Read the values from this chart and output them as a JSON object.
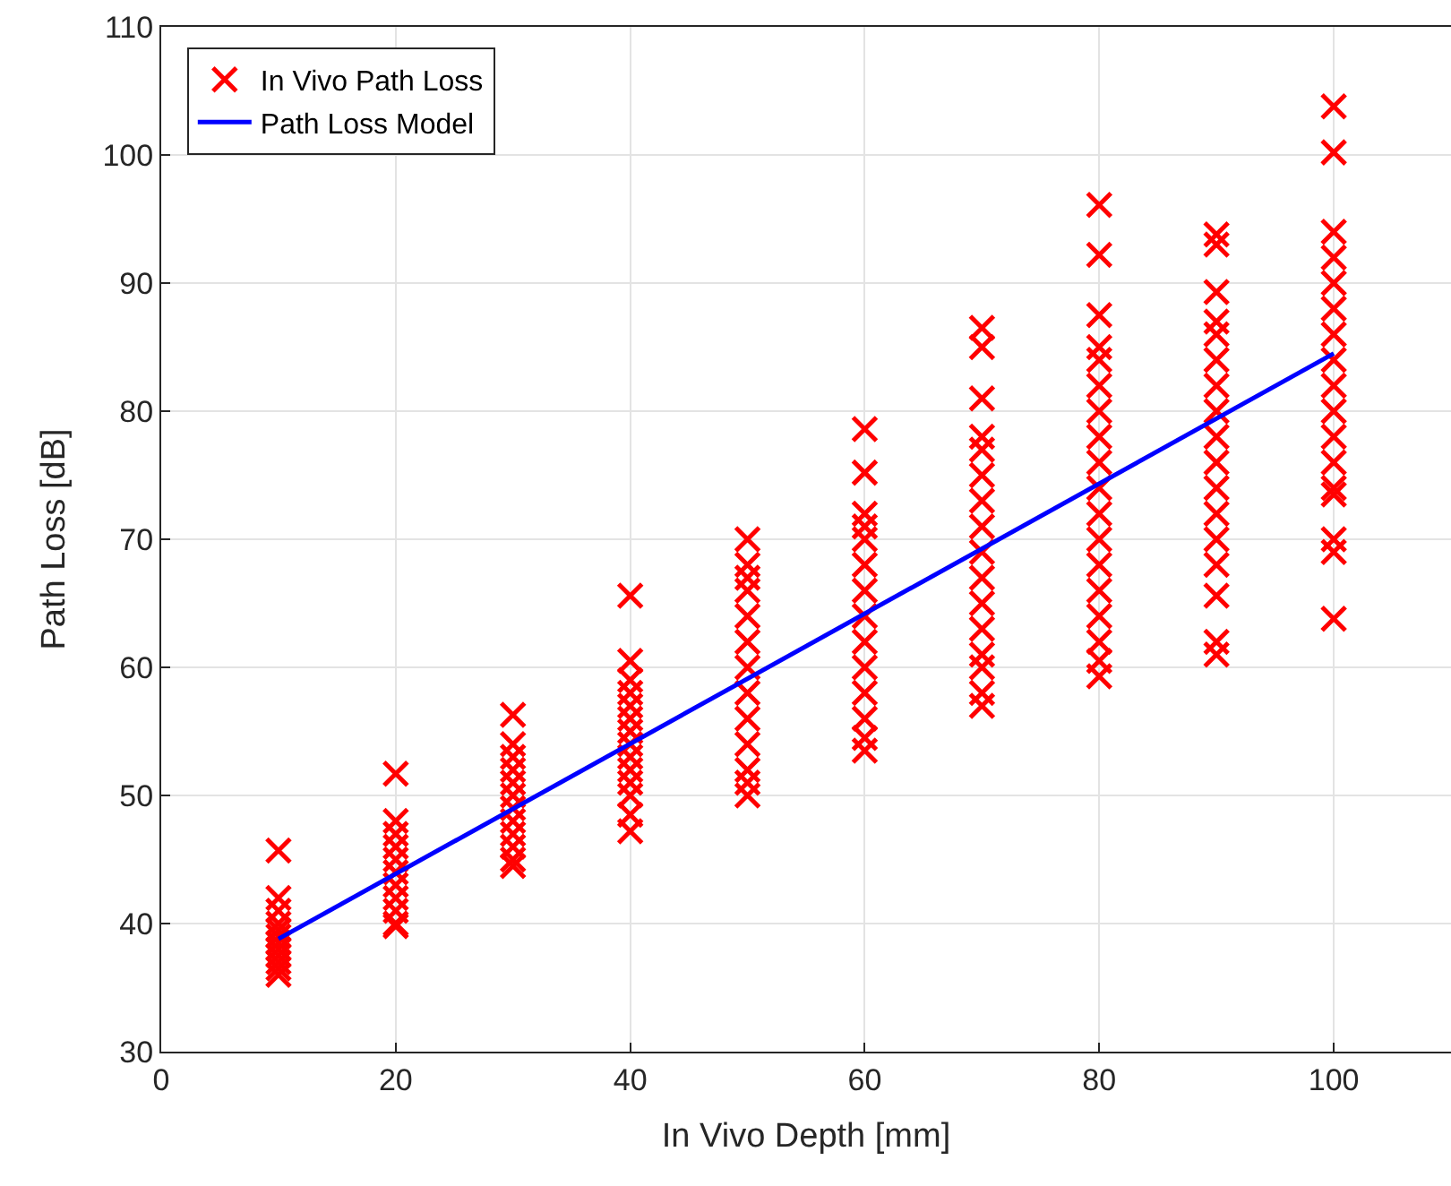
{
  "chart_data": {
    "type": "scatter",
    "xlabel": "In Vivo Depth [mm]",
    "ylabel": "Path Loss [dB]",
    "xlim": [
      0,
      110
    ],
    "xticks": [
      0,
      20,
      40,
      60,
      80,
      100
    ],
    "ylim": [
      30,
      110
    ],
    "yticks": [
      30,
      40,
      50,
      60,
      70,
      80,
      90,
      100,
      110
    ],
    "grid": true,
    "legend": "top left",
    "marker": "cross",
    "series": [
      {
        "name": "In Vivo Path Loss",
        "color": "#ff0000",
        "x": [
          10,
          10,
          10,
          10,
          10,
          10,
          10,
          10,
          10,
          10,
          10,
          10,
          20,
          20,
          20,
          20,
          20,
          20,
          20,
          20,
          20,
          20,
          20,
          30,
          30,
          30,
          30,
          30,
          30,
          30,
          30,
          30,
          30,
          30,
          30,
          40,
          40,
          40,
          40,
          40,
          40,
          40,
          40,
          40,
          40,
          40,
          40,
          40,
          40,
          50,
          50,
          50,
          50,
          50,
          50,
          50,
          50,
          50,
          50,
          50,
          50,
          50,
          60,
          60,
          60,
          60,
          60,
          60,
          60,
          60,
          60,
          60,
          60,
          60,
          60,
          60,
          70,
          70,
          70,
          70,
          70,
          70,
          70,
          70,
          70,
          70,
          70,
          70,
          70,
          70,
          70,
          70,
          80,
          80,
          80,
          80,
          80,
          80,
          80,
          80,
          80,
          80,
          80,
          80,
          80,
          80,
          80,
          80,
          80,
          80,
          90,
          90,
          90,
          90,
          90,
          90,
          90,
          90,
          90,
          90,
          90,
          90,
          90,
          90,
          90,
          90,
          90,
          100,
          100,
          100,
          100,
          100,
          100,
          100,
          100,
          100,
          100,
          100,
          100,
          100,
          100,
          100,
          100,
          100
        ],
        "values": [
          45.7,
          42,
          41,
          40,
          39.5,
          39,
          38.5,
          38,
          37.5,
          37,
          36.5,
          36,
          51.7,
          48,
          47,
          46,
          45,
          44,
          43,
          42,
          41,
          40,
          39.8,
          56.3,
          54,
          53,
          52,
          51,
          50,
          49,
          48,
          47,
          46,
          45,
          44.5,
          65.6,
          60.5,
          59,
          58,
          57,
          56,
          55,
          54,
          53,
          52,
          51,
          50,
          48.5,
          47.2,
          70,
          68,
          67,
          66,
          64,
          62,
          60,
          58,
          56,
          54,
          52,
          51,
          50,
          78.6,
          75.2,
          72,
          71,
          70,
          68,
          66,
          64,
          62,
          60,
          58,
          56,
          54.5,
          53.5,
          86.5,
          85,
          81,
          78,
          77,
          75,
          73,
          71,
          69,
          67,
          65,
          63,
          61,
          60,
          58,
          57,
          96.1,
          92.2,
          87.5,
          85,
          84,
          82,
          80,
          78,
          76,
          74,
          72,
          70,
          68,
          66,
          64,
          62,
          60.5,
          59.3,
          93.8,
          93,
          89.3,
          87,
          86,
          84,
          82,
          80,
          78,
          76,
          74,
          72,
          70,
          68,
          65.6,
          62,
          61,
          103.8,
          100.2,
          94,
          92,
          90,
          88,
          86,
          84,
          82,
          80,
          78,
          76,
          74,
          73.5,
          70,
          69,
          63.8
        ]
      },
      {
        "name": "Path Loss Model",
        "color": "#0000ff",
        "type": "line",
        "marker": "none",
        "line_style": "solid",
        "x": [
          10,
          100
        ],
        "values": [
          38.8,
          84.5
        ]
      }
    ]
  }
}
